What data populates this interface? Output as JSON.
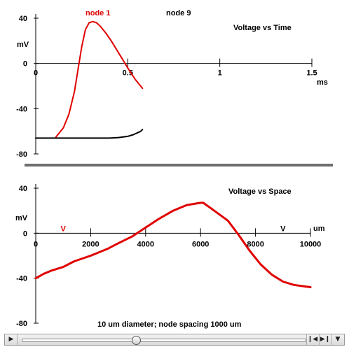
{
  "chart_data": [
    {
      "type": "line",
      "title": "Voltage vs Time",
      "xlabel": "ms",
      "ylabel": "mV",
      "xlim": [
        0,
        1.5
      ],
      "ylim": [
        -80,
        40
      ],
      "x_ticks": [
        "0.5",
        "1",
        "1.5"
      ],
      "y_ticks": [
        "40",
        "0",
        "-40",
        "-80"
      ],
      "grid": false,
      "legend": "top",
      "series": [
        {
          "name": "node 1",
          "color": "#e00000",
          "x": [
            0.11,
            0.15,
            0.18,
            0.21,
            0.23,
            0.25,
            0.27,
            0.29,
            0.31,
            0.33,
            0.35,
            0.38,
            0.41,
            0.44,
            0.47,
            0.5,
            0.54,
            0.58
          ],
          "y": [
            -65,
            -57,
            -45,
            -25,
            -5,
            15,
            30,
            36,
            37,
            36,
            33,
            27,
            20,
            12,
            4,
            -4,
            -14,
            -22
          ]
        },
        {
          "name": "node 9",
          "color": "#000000",
          "x": [
            0.0,
            0.1,
            0.2,
            0.3,
            0.4,
            0.45,
            0.5,
            0.53,
            0.55,
            0.57,
            0.58
          ],
          "y": [
            -66,
            -66,
            -66,
            -66,
            -66,
            -65.5,
            -64.5,
            -63,
            -61.5,
            -60,
            -58.5
          ]
        }
      ]
    },
    {
      "type": "line",
      "title": "Voltage vs Space",
      "xlabel": "um",
      "ylabel": "mV",
      "xlim": [
        0,
        10000
      ],
      "ylim": [
        -80,
        40
      ],
      "x_ticks": [
        "0",
        "2000",
        "4000",
        "6000",
        "8000",
        "10000"
      ],
      "y_ticks": [
        "40",
        "0",
        "-40",
        "-80"
      ],
      "grid": false,
      "annotation": "10 um diameter; node spacing 1000 um",
      "markers": [
        {
          "label": "V",
          "x": 1000,
          "color": "#e00000"
        },
        {
          "label": "V",
          "x": 9000,
          "color": "#000000"
        }
      ],
      "series": [
        {
          "color": "#e00000",
          "x": [
            0,
            300,
            600,
            1000,
            1400,
            2000,
            2600,
            3000,
            3500,
            4000,
            4500,
            5000,
            5500,
            6000,
            6100,
            6500,
            7000,
            7400,
            7800,
            8200,
            8600,
            9000,
            9400,
            10000
          ],
          "y": [
            -40,
            -36,
            -33,
            -30,
            -25,
            -20,
            -14,
            -9,
            -3,
            5,
            13,
            20,
            25,
            27,
            27,
            20,
            11,
            -2,
            -16,
            -28,
            -37,
            -43,
            -46,
            -48
          ]
        }
      ]
    }
  ],
  "player": {
    "play_icon": "play-icon",
    "progress": 0.4,
    "step_back_icon": "step-back-icon",
    "step_forward_icon": "step-forward-icon",
    "menu_icon": "dropdown-icon"
  }
}
